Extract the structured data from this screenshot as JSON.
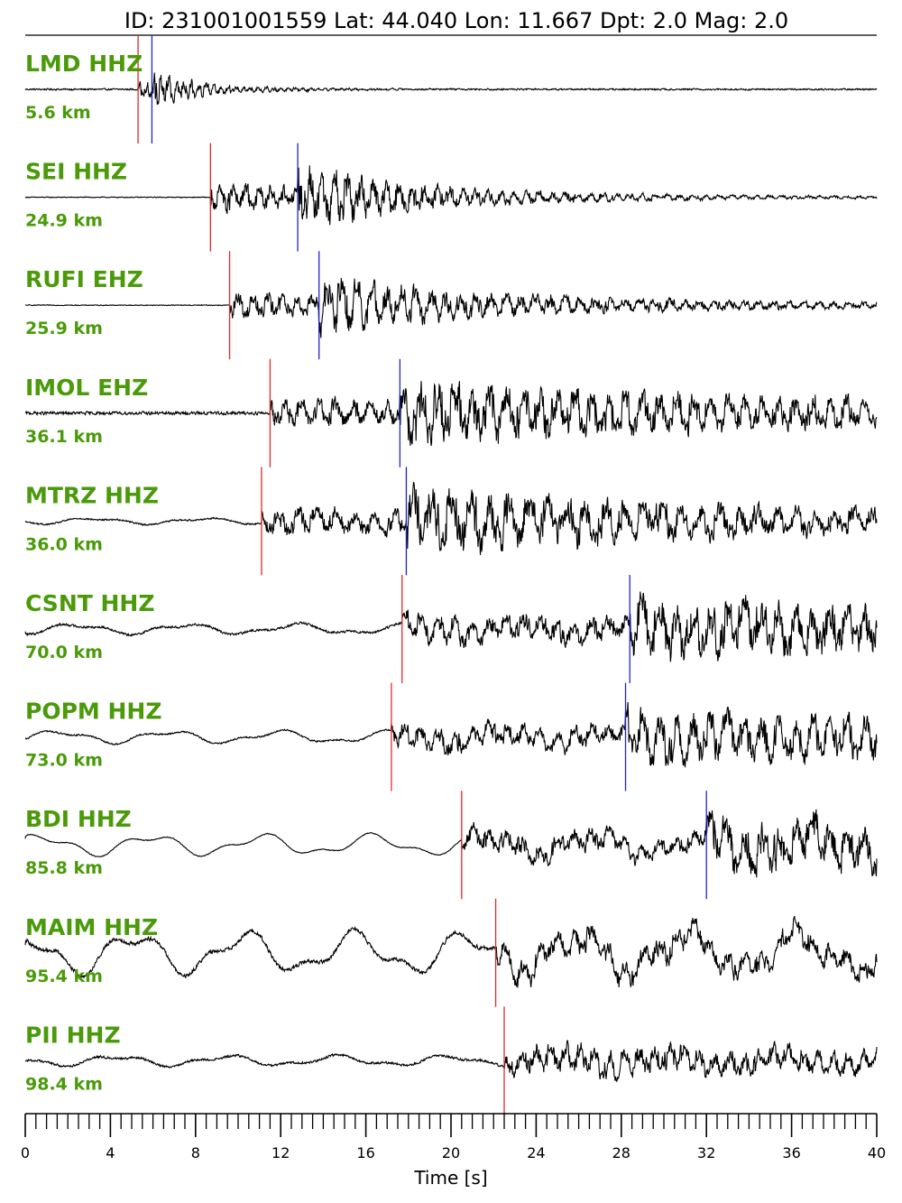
{
  "chart_data": {
    "type": "line",
    "title": "ID: 231001001559 Lat:  44.040 Lon:  11.667 Dpt:     2.0 Mag:   2.0",
    "xlabel": "Time [s]",
    "xlim": [
      0,
      40
    ],
    "x_ticks": [
      "0",
      "4",
      "8",
      "12",
      "16",
      "20",
      "24",
      "28",
      "32",
      "36",
      "40"
    ],
    "minor_tick_step": 0.5,
    "colors": {
      "trace": "#000000",
      "p_pick": "#e8262a",
      "s_pick": "#2323cc",
      "label": "#4a9a0a"
    },
    "series": [
      {
        "name": "LMD HHZ",
        "distance": "5.6 km",
        "p_time": 5.3,
        "s_time": 5.95,
        "noise_before": 0.02,
        "event_amp": 0.55,
        "decay": 3.0,
        "period": 0.35,
        "lf_amp": 0.0
      },
      {
        "name": "SEI HHZ",
        "distance": "24.9 km",
        "p_time": 8.7,
        "s_time": 12.8,
        "noise_before": 0.01,
        "event_amp": 0.95,
        "decay": 8.0,
        "period": 0.6,
        "lf_amp": 0.0
      },
      {
        "name": "RUFI EHZ",
        "distance": "25.9 km",
        "p_time": 9.6,
        "s_time": 13.8,
        "noise_before": 0.01,
        "event_amp": 0.75,
        "decay": 14.0,
        "period": 0.7,
        "lf_amp": 0.0
      },
      {
        "name": "IMOL EHZ",
        "distance": "36.1 km",
        "p_time": 11.5,
        "s_time": 17.6,
        "noise_before": 0.04,
        "event_amp": 0.85,
        "decay": 40.0,
        "period": 0.8,
        "lf_amp": 0.0
      },
      {
        "name": "MTRZ HHZ",
        "distance": "36.0 km",
        "p_time": 11.1,
        "s_time": 17.9,
        "noise_before": 0.02,
        "event_amp": 0.85,
        "decay": 35.0,
        "period": 0.9,
        "lf_amp": 0.06
      },
      {
        "name": "CSNT HHZ",
        "distance": "70.0 km",
        "p_time": 17.7,
        "s_time": 28.4,
        "noise_before": 0.03,
        "event_amp": 0.8,
        "decay": 80.0,
        "period": 0.8,
        "lf_amp": 0.1
      },
      {
        "name": "POPM HHZ",
        "distance": "73.0 km",
        "p_time": 17.2,
        "s_time": 28.2,
        "noise_before": 0.02,
        "event_amp": 0.7,
        "decay": 80.0,
        "period": 0.8,
        "lf_amp": 0.12
      },
      {
        "name": "BDI HHZ",
        "distance": "85.8 km",
        "p_time": 20.5,
        "s_time": 32.0,
        "noise_before": 0.01,
        "event_amp": 0.7,
        "decay": 80.0,
        "period": 0.8,
        "lf_amp": 0.2
      },
      {
        "name": "MAIM HHZ",
        "distance": "95.4 km",
        "p_time": 22.1,
        "s_time": null,
        "noise_before": 0.05,
        "event_amp": 0.85,
        "decay": 80.0,
        "period": 0.8,
        "lf_amp": 0.4
      },
      {
        "name": "PII HHZ",
        "distance": "98.4 km",
        "p_time": 22.5,
        "s_time": null,
        "noise_before": 0.03,
        "event_amp": 0.85,
        "decay": 80.0,
        "period": 0.7,
        "lf_amp": 0.1
      }
    ]
  }
}
